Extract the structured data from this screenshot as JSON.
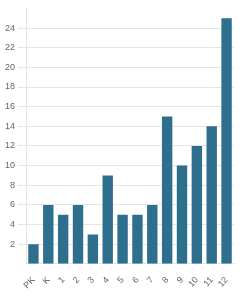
{
  "chart_data": {
    "type": "bar",
    "categories": [
      "PK",
      "K",
      "1",
      "2",
      "3",
      "4",
      "5",
      "6",
      "7",
      "8",
      "9",
      "10",
      "11",
      "12"
    ],
    "values": [
      2,
      6,
      5,
      6,
      3,
      9,
      5,
      5,
      6,
      15,
      10,
      12,
      14,
      25
    ],
    "color": "#2e6f8e",
    "ylim": [
      0,
      26
    ],
    "yticks": [
      2,
      4,
      6,
      8,
      10,
      12,
      14,
      16,
      18,
      20,
      22,
      24
    ],
    "grid": true
  }
}
